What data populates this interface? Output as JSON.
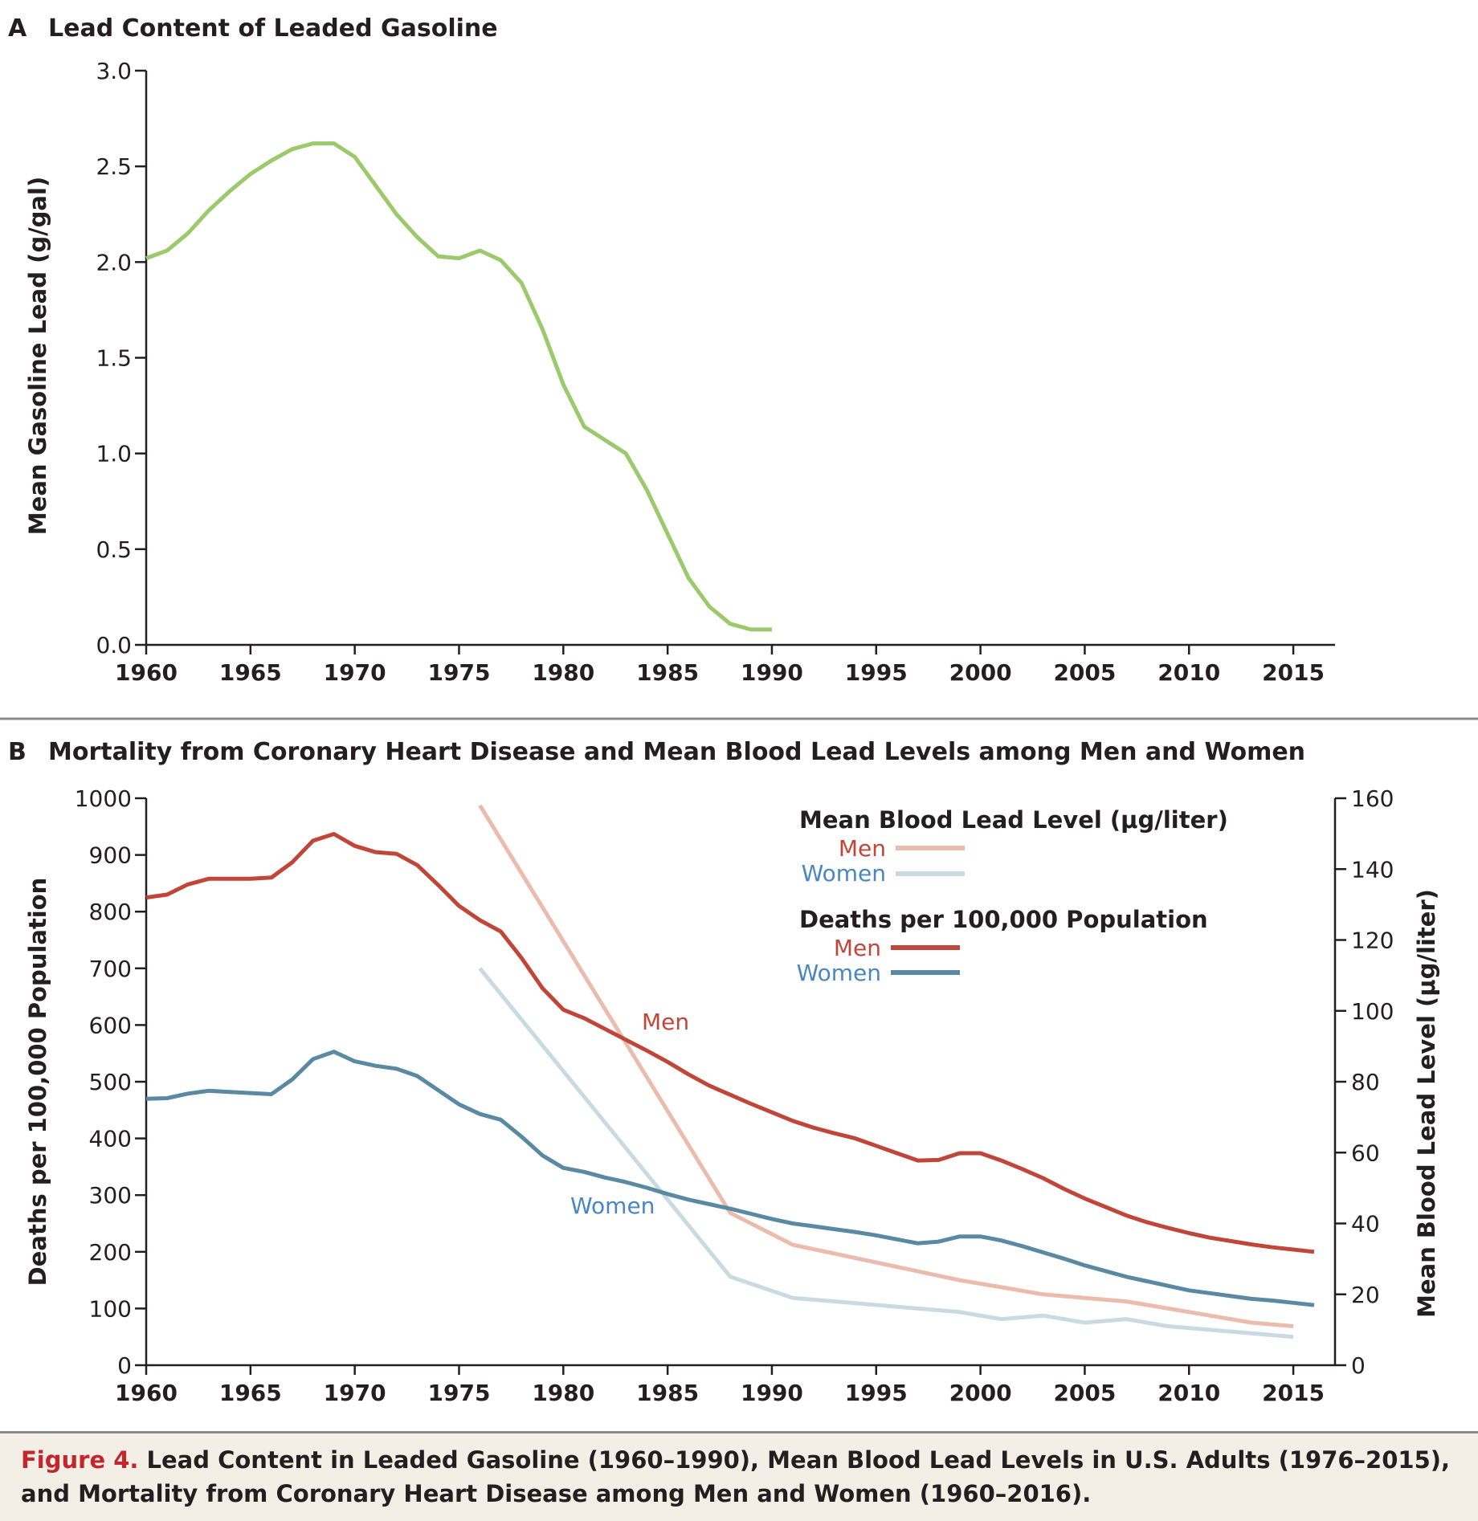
{
  "figure": {
    "caption_label": "Figure 4.",
    "caption_text": "Lead Content in Leaded Gasoline (1960–1990), Mean Blood Lead Levels in U.S. Adults (1976–2015), and Mortality from Coronary Heart Disease among Men and Women (1960–2016)."
  },
  "colors": {
    "gasoline": "#9bc96b",
    "deaths_men": "#c0463a",
    "deaths_women": "#5a8aa3",
    "blood_men": "#ebbcad",
    "blood_women": "#c9dae3",
    "label_men": "#c0463a",
    "label_women": "#4a86c1"
  },
  "chart_data": [
    {
      "type": "line",
      "panel": "A",
      "title": "Lead Content of Leaded Gasoline",
      "xlabel": "",
      "ylabel": "Mean Gasoline Lead (g/gal)",
      "xlim": [
        1960,
        2017
      ],
      "ylim": [
        0,
        3.0
      ],
      "x_ticks": [
        "1960",
        "1965",
        "1970",
        "1975",
        "1980",
        "1985",
        "1990",
        "1995",
        "2000",
        "2005",
        "2010",
        "2015"
      ],
      "y_ticks": [
        "0.0",
        "0.5",
        "1.0",
        "1.5",
        "2.0",
        "2.5",
        "3.0"
      ],
      "grid": false,
      "series": [
        {
          "color_key": "gasoline",
          "x": [
            1960,
            1961,
            1962,
            1963,
            1964,
            1965,
            1966,
            1967,
            1968,
            1969,
            1970,
            1971,
            1972,
            1973,
            1974,
            1975,
            1976,
            1977,
            1978,
            1979,
            1980,
            1981,
            1982,
            1983,
            1984,
            1985,
            1986,
            1987,
            1988,
            1989,
            1990
          ],
          "values": [
            2.02,
            2.06,
            2.15,
            2.27,
            2.37,
            2.46,
            2.53,
            2.59,
            2.62,
            2.62,
            2.55,
            2.4,
            2.25,
            2.13,
            2.03,
            2.02,
            2.06,
            2.01,
            1.89,
            1.65,
            1.36,
            1.14,
            1.07,
            1.0,
            0.81,
            0.58,
            0.35,
            0.2,
            0.11,
            0.08,
            0.08
          ]
        }
      ]
    },
    {
      "type": "line",
      "panel": "B",
      "title": "Mortality from Coronary Heart Disease and Mean Blood Lead Levels among Men and Women",
      "xlabel": "",
      "ylabel": "Deaths per 100,000 Population",
      "ylabel_right": "Mean Blood Lead Level (μg/liter)",
      "xlim": [
        1960,
        2017
      ],
      "ylim": [
        0,
        1000
      ],
      "ylim_right": [
        0,
        160
      ],
      "x_ticks": [
        "1960",
        "1965",
        "1970",
        "1975",
        "1980",
        "1985",
        "1990",
        "1995",
        "2000",
        "2005",
        "2010",
        "2015"
      ],
      "y_ticks": [
        "0",
        "100",
        "200",
        "300",
        "400",
        "500",
        "600",
        "700",
        "800",
        "900",
        "1000"
      ],
      "y_ticks_right": [
        "0",
        "20",
        "40",
        "60",
        "80",
        "100",
        "120",
        "140",
        "160"
      ],
      "grid": false,
      "legend": {
        "placement": "top-right",
        "blood_heading": "Mean Blood Lead Level (μg/liter)",
        "deaths_heading": "Deaths per 100,000 Population",
        "men_label": "Men",
        "women_label": "Women"
      },
      "inline_labels": {
        "men": "Men",
        "women": "Women"
      },
      "series": [
        {
          "group": "deaths",
          "sex": "men",
          "axis": "left",
          "color_key": "deaths_men",
          "x": [
            1960,
            1961,
            1962,
            1963,
            1964,
            1965,
            1966,
            1967,
            1968,
            1969,
            1970,
            1971,
            1972,
            1973,
            1974,
            1975,
            1976,
            1977,
            1978,
            1979,
            1980,
            1981,
            1982,
            1983,
            1984,
            1985,
            1986,
            1987,
            1988,
            1989,
            1990,
            1991,
            1992,
            1993,
            1994,
            1995,
            1996,
            1997,
            1998,
            1999,
            2000,
            2001,
            2002,
            2003,
            2004,
            2005,
            2006,
            2007,
            2008,
            2009,
            2010,
            2011,
            2012,
            2013,
            2014,
            2015,
            2016
          ],
          "values": [
            825,
            830,
            848,
            858,
            858,
            858,
            860,
            887,
            925,
            937,
            916,
            905,
            902,
            882,
            847,
            810,
            785,
            765,
            718,
            665,
            627,
            612,
            593,
            574,
            555,
            535,
            513,
            493,
            477,
            461,
            446,
            431,
            419,
            409,
            400,
            387,
            374,
            361,
            362,
            374,
            374,
            361,
            346,
            330,
            311,
            294,
            279,
            264,
            252,
            242,
            233,
            225,
            219,
            213,
            208,
            204,
            200
          ]
        },
        {
          "group": "deaths",
          "sex": "women",
          "axis": "left",
          "color_key": "deaths_women",
          "x": [
            1960,
            1961,
            1962,
            1963,
            1964,
            1965,
            1966,
            1967,
            1968,
            1969,
            1970,
            1971,
            1972,
            1973,
            1974,
            1975,
            1976,
            1977,
            1978,
            1979,
            1980,
            1981,
            1982,
            1983,
            1984,
            1985,
            1986,
            1987,
            1988,
            1989,
            1990,
            1991,
            1992,
            1993,
            1994,
            1995,
            1996,
            1997,
            1998,
            1999,
            2000,
            2001,
            2002,
            2003,
            2004,
            2005,
            2006,
            2007,
            2008,
            2009,
            2010,
            2011,
            2012,
            2013,
            2014,
            2015,
            2016
          ],
          "values": [
            470,
            471,
            479,
            484,
            482,
            480,
            478,
            504,
            540,
            553,
            536,
            528,
            523,
            510,
            485,
            460,
            443,
            433,
            403,
            370,
            348,
            341,
            331,
            323,
            313,
            302,
            292,
            284,
            276,
            267,
            258,
            250,
            245,
            240,
            235,
            229,
            222,
            215,
            218,
            227,
            227,
            220,
            210,
            199,
            188,
            176,
            166,
            156,
            148,
            140,
            132,
            127,
            122,
            117,
            114,
            110,
            106
          ]
        },
        {
          "group": "blood_lead",
          "sex": "men",
          "axis": "right",
          "color_key": "blood_men",
          "x": [
            1976,
            1988,
            1991,
            1999,
            2001,
            2003,
            2005,
            2007,
            2009,
            2011,
            2013,
            2015
          ],
          "values": [
            158,
            43,
            34,
            24,
            22,
            20,
            19,
            18,
            16,
            14,
            12,
            11
          ]
        },
        {
          "group": "blood_lead",
          "sex": "women",
          "axis": "right",
          "color_key": "blood_women",
          "x": [
            1976,
            1988,
            1991,
            1999,
            2001,
            2003,
            2005,
            2007,
            2009,
            2011,
            2013,
            2015
          ],
          "values": [
            112,
            25,
            19,
            15,
            13,
            14,
            12,
            13,
            11,
            10,
            9,
            8
          ]
        }
      ]
    }
  ]
}
